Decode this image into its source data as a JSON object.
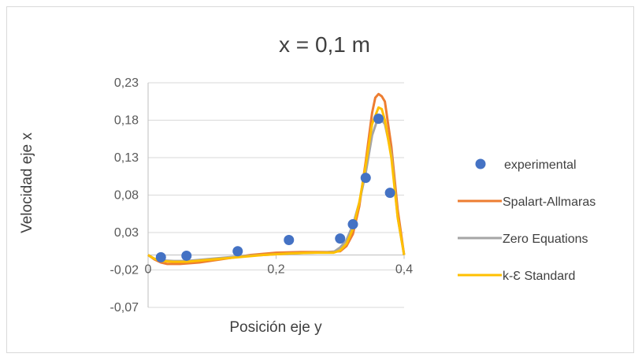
{
  "chart_data": {
    "type": "scatter",
    "title": "x = 0,1 m",
    "xlabel": "Posición eje y",
    "ylabel": "Velocidad eje x",
    "xlim": [
      0,
      0.4
    ],
    "ylim": [
      -0.07,
      0.23
    ],
    "x_ticks": [
      {
        "value": 0,
        "label": "0"
      },
      {
        "value": 0.2,
        "label": "0,2"
      },
      {
        "value": 0.4,
        "label": "0,4"
      }
    ],
    "y_ticks": [
      {
        "value": 0.23,
        "label": "0,23"
      },
      {
        "value": 0.18,
        "label": "0,18"
      },
      {
        "value": 0.13,
        "label": "0,13"
      },
      {
        "value": 0.08,
        "label": "0,08"
      },
      {
        "value": 0.03,
        "label": "0,03"
      },
      {
        "value": -0.02,
        "label": "-0,02"
      },
      {
        "value": -0.07,
        "label": "-0,07"
      }
    ],
    "grid": "horizontal",
    "legend_position": "right",
    "series": [
      {
        "name": "experimental",
        "kind": "scatter",
        "color": "#4472c4",
        "x": [
          0.02,
          0.06,
          0.14,
          0.22,
          0.3,
          0.32,
          0.34,
          0.36,
          0.378
        ],
        "y": [
          -0.003,
          -0.001,
          0.005,
          0.02,
          0.022,
          0.041,
          0.103,
          0.182,
          0.083
        ]
      },
      {
        "name": "Spalart-Allmaras",
        "kind": "line",
        "color": "#ed7d31",
        "x": [
          0,
          0.01,
          0.02,
          0.03,
          0.05,
          0.08,
          0.12,
          0.16,
          0.2,
          0.24,
          0.28,
          0.3,
          0.31,
          0.32,
          0.33,
          0.34,
          0.35,
          0.355,
          0.36,
          0.365,
          0.37,
          0.38,
          0.39,
          0.4
        ],
        "y": [
          0,
          -0.006,
          -0.01,
          -0.012,
          -0.012,
          -0.01,
          -0.005,
          0.0,
          0.003,
          0.004,
          0.004,
          0.005,
          0.012,
          0.028,
          0.065,
          0.125,
          0.19,
          0.21,
          0.215,
          0.212,
          0.205,
          0.145,
          0.06,
          0.0
        ]
      },
      {
        "name": "Zero Equations",
        "kind": "line",
        "color": "#a5a5a5",
        "x": [
          0,
          0.01,
          0.02,
          0.04,
          0.06,
          0.1,
          0.14,
          0.18,
          0.22,
          0.26,
          0.29,
          0.3,
          0.31,
          0.32,
          0.33,
          0.34,
          0.35,
          0.36,
          0.37,
          0.38,
          0.39,
          0.4
        ],
        "y": [
          0,
          -0.005,
          -0.007,
          -0.008,
          -0.008,
          -0.005,
          -0.002,
          0.0,
          0.002,
          0.003,
          0.004,
          0.01,
          0.02,
          0.04,
          0.07,
          0.11,
          0.16,
          0.185,
          0.175,
          0.135,
          0.05,
          0.0
        ]
      },
      {
        "name": "k-Ɛ Standard",
        "kind": "line",
        "color": "#ffc000",
        "x": [
          0,
          0.01,
          0.02,
          0.04,
          0.06,
          0.1,
          0.14,
          0.18,
          0.22,
          0.26,
          0.29,
          0.3,
          0.31,
          0.32,
          0.33,
          0.34,
          0.35,
          0.36,
          0.365,
          0.37,
          0.38,
          0.39,
          0.4
        ],
        "y": [
          0,
          -0.005,
          -0.008,
          -0.009,
          -0.009,
          -0.006,
          -0.003,
          0.0,
          0.002,
          0.003,
          0.003,
          0.006,
          0.015,
          0.035,
          0.07,
          0.12,
          0.175,
          0.197,
          0.195,
          0.18,
          0.13,
          0.05,
          0.0
        ]
      }
    ]
  }
}
